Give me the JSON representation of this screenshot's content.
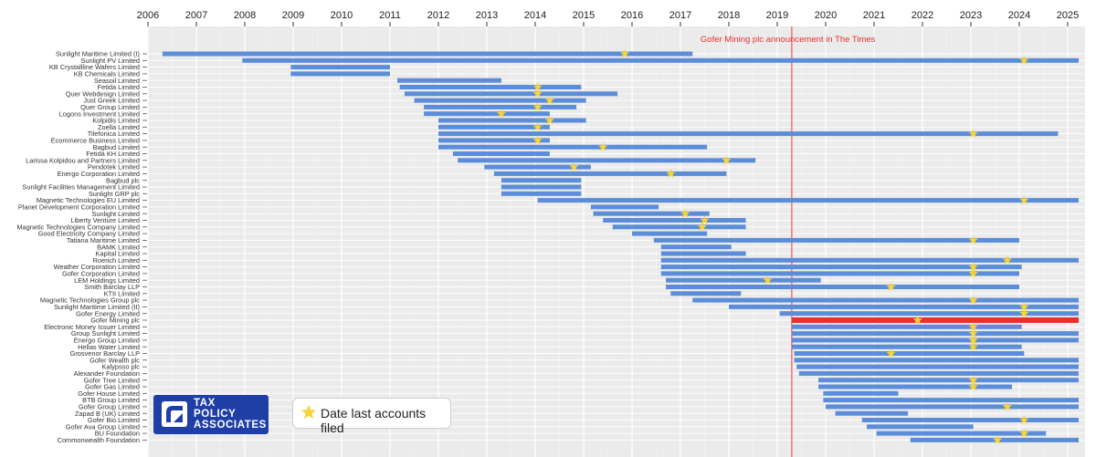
{
  "chart_data": {
    "type": "gantt",
    "title": "",
    "x_axis": {
      "type": "year",
      "ticks": [
        2006,
        2007,
        2008,
        2009,
        2010,
        2011,
        2012,
        2013,
        2014,
        2015,
        2016,
        2017,
        2018,
        2019,
        2020,
        2021,
        2022,
        2023,
        2024,
        2025
      ],
      "range": [
        2006.0,
        2025.4
      ]
    },
    "annotation": {
      "label": "Gofer Mining plc announcement in The Times",
      "x": 2019.3,
      "color": "#f26b6b"
    },
    "legend": {
      "label": "Date last accounts filed"
    },
    "bar_color": "#5b8dd9",
    "highlight_color": "#e8312c",
    "star_color": "#f5d33a",
    "rows": [
      {
        "name": "Sunlight Maritime Limited (I)",
        "start": 2006.3,
        "end": 2017.25,
        "stars": [
          2015.85
        ]
      },
      {
        "name": "Sunlight PV Limited",
        "start": 2007.95,
        "end": 2025.4,
        "stars": [
          2024.1
        ]
      },
      {
        "name": "KB Crystallline Wafers Limited",
        "start": 2008.95,
        "end": 2011.0,
        "stars": []
      },
      {
        "name": "KB Chemicals Limited",
        "start": 2008.95,
        "end": 2011.0,
        "stars": []
      },
      {
        "name": "Seasoil Limited",
        "start": 2011.15,
        "end": 2013.3,
        "stars": []
      },
      {
        "name": "Fetida Limited",
        "start": 2011.2,
        "end": 2014.95,
        "stars": [
          2014.05
        ]
      },
      {
        "name": "Quer Webdesign Limited",
        "start": 2011.3,
        "end": 2015.7,
        "stars": [
          2014.05
        ]
      },
      {
        "name": "Just Greek Limited",
        "start": 2011.5,
        "end": 2015.05,
        "stars": [
          2014.3
        ]
      },
      {
        "name": "Quer Group Limited",
        "start": 2011.7,
        "end": 2014.85,
        "stars": [
          2014.05
        ]
      },
      {
        "name": "Logons Investment Limited",
        "start": 2011.7,
        "end": 2014.3,
        "stars": [
          2013.3
        ]
      },
      {
        "name": "Kolpidis Limited",
        "start": 2012.0,
        "end": 2015.05,
        "stars": [
          2014.3
        ]
      },
      {
        "name": "Zoella Limited",
        "start": 2012.0,
        "end": 2014.3,
        "stars": [
          2014.05
        ]
      },
      {
        "name": "Tilefonica Limited",
        "start": 2012.0,
        "end": 2024.8,
        "stars": [
          2023.05
        ]
      },
      {
        "name": "Ecommerce Business Limited",
        "start": 2012.0,
        "end": 2014.3,
        "stars": [
          2014.05
        ]
      },
      {
        "name": "Bagbud Limited",
        "start": 2012.0,
        "end": 2017.55,
        "stars": [
          2015.4
        ]
      },
      {
        "name": "Fetida KH Limited",
        "start": 2012.3,
        "end": 2014.3,
        "stars": []
      },
      {
        "name": "Larissa Kolpidou and Partners Limited",
        "start": 2012.4,
        "end": 2018.55,
        "stars": [
          2017.95
        ]
      },
      {
        "name": "Pendotek Limited",
        "start": 2012.95,
        "end": 2015.15,
        "stars": [
          2014.8
        ]
      },
      {
        "name": "Energo Corporation Limited",
        "start": 2013.15,
        "end": 2017.95,
        "stars": [
          2016.8
        ]
      },
      {
        "name": "Bagbud plc",
        "start": 2013.3,
        "end": 2014.95,
        "stars": []
      },
      {
        "name": "Sunlight Facilities Management Limited",
        "start": 2013.3,
        "end": 2014.95,
        "stars": []
      },
      {
        "name": "Sunlight GRP plc",
        "start": 2013.3,
        "end": 2014.95,
        "stars": []
      },
      {
        "name": "Magnetic Technologies EU Limited",
        "start": 2014.05,
        "end": 2025.4,
        "stars": [
          2024.1
        ]
      },
      {
        "name": "Planet Development Corporation Limited",
        "start": 2015.15,
        "end": 2016.55,
        "stars": []
      },
      {
        "name": "Sunlight Limited",
        "start": 2015.2,
        "end": 2017.6,
        "stars": [
          2017.1
        ]
      },
      {
        "name": "Liberty Venture Limited",
        "start": 2015.4,
        "end": 2018.35,
        "stars": [
          2017.5
        ]
      },
      {
        "name": "Magnetic Technologies Company Limited",
        "start": 2015.6,
        "end": 2018.35,
        "stars": [
          2017.45
        ]
      },
      {
        "name": "Good Electricity Company Limited",
        "start": 2016.0,
        "end": 2017.55,
        "stars": []
      },
      {
        "name": "Tatiana Maritime Limited",
        "start": 2016.45,
        "end": 2024.0,
        "stars": [
          2023.05
        ]
      },
      {
        "name": "BAMK Limited",
        "start": 2016.6,
        "end": 2018.05,
        "stars": []
      },
      {
        "name": "Kapital Limited",
        "start": 2016.6,
        "end": 2018.35,
        "stars": []
      },
      {
        "name": "Roerich Limited",
        "start": 2016.6,
        "end": 2025.4,
        "stars": [
          2023.75
        ]
      },
      {
        "name": "Weather Corporation Limited",
        "start": 2016.6,
        "end": 2024.05,
        "stars": [
          2023.05
        ]
      },
      {
        "name": "Gofer Corporation Limited",
        "start": 2016.6,
        "end": 2024.0,
        "stars": [
          2023.05
        ]
      },
      {
        "name": "LEM Holdings Limited",
        "start": 2016.7,
        "end": 2019.9,
        "stars": [
          2018.8
        ]
      },
      {
        "name": "Smith Barclay LLP",
        "start": 2016.7,
        "end": 2024.0,
        "stars": [
          2021.35
        ]
      },
      {
        "name": "KTII Limited",
        "start": 2016.8,
        "end": 2018.25,
        "stars": []
      },
      {
        "name": "Magnetic Technologies Group plc",
        "start": 2017.25,
        "end": 2025.4,
        "stars": [
          2023.05
        ]
      },
      {
        "name": "Sunlight Maritime Limited (II)",
        "start": 2018.0,
        "end": 2025.4,
        "stars": [
          2024.1
        ]
      },
      {
        "name": "Gofer Energy Limited",
        "start": 2019.05,
        "end": 2025.4,
        "stars": [
          2024.1
        ]
      },
      {
        "name": "Gofer Mining plc",
        "start": 2019.3,
        "end": 2025.4,
        "stars": [
          2021.9
        ],
        "highlight": true
      },
      {
        "name": "Electronic Money Issuer Limited",
        "start": 2019.3,
        "end": 2024.05,
        "stars": [
          2023.05
        ]
      },
      {
        "name": "Group Sunlight Limited",
        "start": 2019.3,
        "end": 2025.4,
        "stars": [
          2023.05
        ]
      },
      {
        "name": "Energo Group Limited",
        "start": 2019.3,
        "end": 2025.4,
        "stars": [
          2023.05
        ]
      },
      {
        "name": "Hellas Water Limited",
        "start": 2019.3,
        "end": 2024.05,
        "stars": [
          2023.05
        ]
      },
      {
        "name": "Grosvenor Barclay LLP",
        "start": 2019.35,
        "end": 2024.1,
        "stars": [
          2021.35
        ]
      },
      {
        "name": "Gofer Wealth plc",
        "start": 2019.35,
        "end": 2025.4,
        "stars": []
      },
      {
        "name": "Kalypsso plc",
        "start": 2019.4,
        "end": 2025.4,
        "stars": []
      },
      {
        "name": "Alexander Foundation",
        "start": 2019.45,
        "end": 2025.4,
        "stars": []
      },
      {
        "name": "Gofer Tree Limited",
        "start": 2019.85,
        "end": 2025.4,
        "stars": [
          2023.05
        ]
      },
      {
        "name": "Gofer Gas Limited",
        "start": 2019.85,
        "end": 2023.85,
        "stars": [
          2023.05
        ]
      },
      {
        "name": "Gofer House Limited",
        "start": 2019.95,
        "end": 2021.5,
        "stars": []
      },
      {
        "name": "BTB Group Limited",
        "start": 2019.95,
        "end": 2025.4,
        "stars": []
      },
      {
        "name": "Gofer Group Limited",
        "start": 2020.0,
        "end": 2025.4,
        "stars": [
          2023.75
        ]
      },
      {
        "name": "Zapad B (UK) Limited",
        "start": 2020.2,
        "end": 2021.7,
        "stars": []
      },
      {
        "name": "Gofer Bio Limited",
        "start": 2020.75,
        "end": 2025.4,
        "stars": [
          2024.1
        ]
      },
      {
        "name": "Gofer Ava Group Limited",
        "start": 2020.85,
        "end": 2023.05,
        "stars": []
      },
      {
        "name": "BU Foundation",
        "start": 2021.05,
        "end": 2024.55,
        "stars": [
          2024.1
        ]
      },
      {
        "name": "Commonwealth Foundation",
        "start": 2021.75,
        "end": 2025.4,
        "stars": [
          2023.55
        ]
      }
    ]
  },
  "logo": {
    "line1": "TAX",
    "line2": "POLICY",
    "line3": "ASSOCIATES"
  }
}
